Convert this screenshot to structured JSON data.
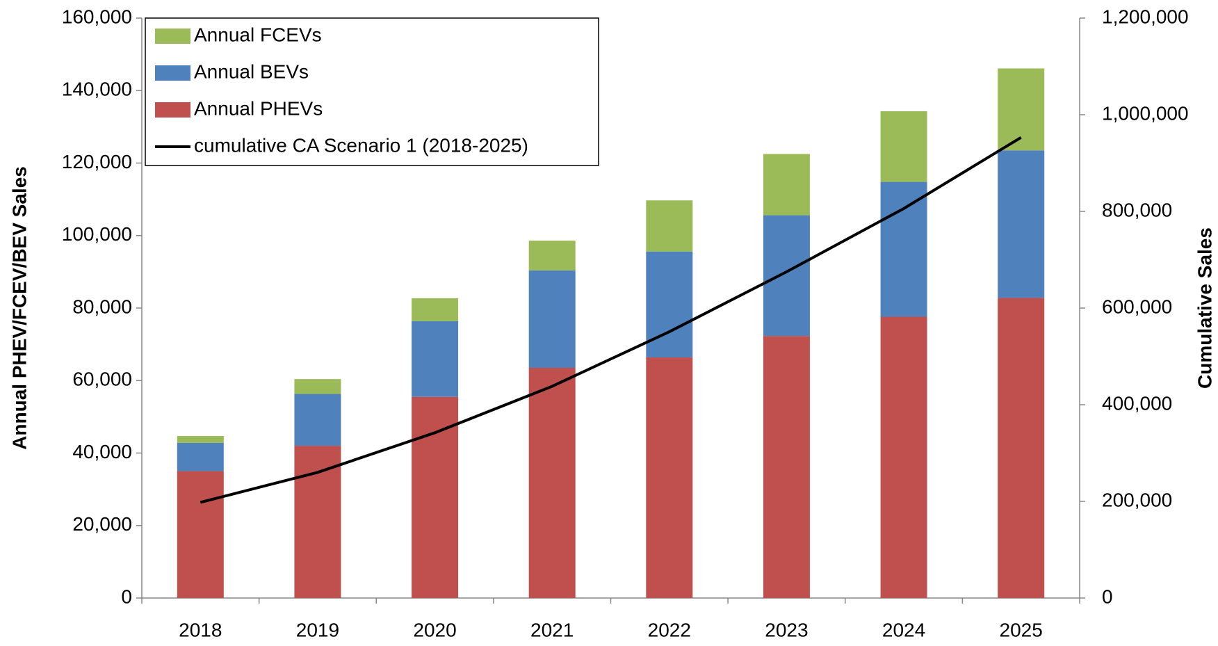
{
  "chart_data": {
    "type": "bar",
    "stacked": true,
    "y_label": "Annual PHEV/FCEV/BEV  Sales",
    "y2_label": "Cumulative Sales",
    "categories": [
      "2018",
      "2019",
      "2020",
      "2021",
      "2022",
      "2023",
      "2024",
      "2025"
    ],
    "series": [
      {
        "name": "Annual PHEVs",
        "color": "#c0504d",
        "values": [
          35000,
          42000,
          55500,
          63500,
          66400,
          72300,
          77600,
          82800
        ]
      },
      {
        "name": "Annual BEVs",
        "color": "#4f81bd",
        "values": [
          7800,
          14300,
          20900,
          26900,
          29200,
          33300,
          37200,
          40700
        ]
      },
      {
        "name": "Annual FCEVs",
        "color": "#9bbb59",
        "values": [
          1900,
          4100,
          6300,
          8200,
          14100,
          16900,
          19500,
          22600
        ]
      },
      {
        "name": "cumulative CA Scenario 1 (2018-2025)",
        "color": "#000000",
        "type": "line",
        "axis": "y2",
        "values": [
          198000,
          260000,
          342000,
          438000,
          551000,
          675000,
          806000,
          953000
        ]
      }
    ],
    "ylim": [
      0,
      160000
    ],
    "yticks": [
      0,
      {
        "value": 20000,
        "label": "20,000"
      },
      {
        "value": 40000,
        "label": "40,000"
      },
      {
        "value": 60000,
        "label": "60,000"
      },
      {
        "value": 80000,
        "label": "80,000"
      },
      {
        "value": 100000,
        "label": "100,000"
      },
      {
        "value": 120000,
        "label": "120,000"
      },
      {
        "value": 140000,
        "label": "140,000"
      },
      {
        "value": 160000,
        "label": "160,000"
      }
    ],
    "y2lim": [
      0,
      1200000
    ],
    "y2ticks": [
      0,
      {
        "value": 200000,
        "label": "200,000"
      },
      {
        "value": 400000,
        "label": "400,000"
      },
      {
        "value": 600000,
        "label": "600,000"
      },
      {
        "value": 800000,
        "label": "800,000"
      },
      {
        "value": 1000000,
        "label": "1,000,000"
      },
      {
        "value": 1200000,
        "label": "1,200,000"
      }
    ],
    "legend": "upper left"
  }
}
